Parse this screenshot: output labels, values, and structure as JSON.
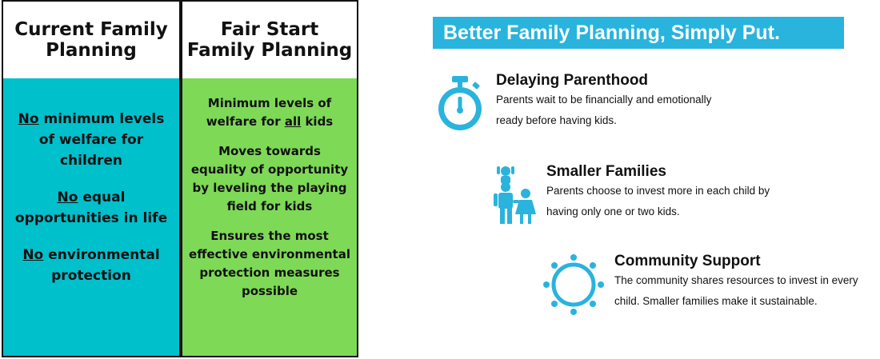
{
  "comparison": {
    "current": {
      "heading": [
        "Current Family",
        "Planning"
      ],
      "items": [
        [
          {
            "u": "No"
          },
          " minimum levels of welfare for children"
        ],
        [
          {
            "u": "No"
          },
          " equal opportunities in life"
        ],
        [
          {
            "u": "No"
          },
          " environmental protection"
        ]
      ]
    },
    "fair_start": {
      "heading": [
        "Fair Start",
        "Family Planning"
      ],
      "items": [
        [
          "Minimum levels of welfare for ",
          {
            "u": "all"
          },
          " kids"
        ],
        [
          "Moves towards equality of opportunity by leveling the playing field for kids"
        ],
        [
          "Ensures the most effective environmental protection measures possible"
        ]
      ]
    }
  },
  "banner": {
    "title": "Better Family Planning, Simply Put."
  },
  "features": [
    {
      "icon": "stopwatch-icon",
      "title": "Delaying Parenthood",
      "desc_lines": [
        "Parents wait to be financially and emotionally",
        "ready before having kids."
      ]
    },
    {
      "icon": "family-icon",
      "title": "Smaller Families",
      "desc_lines": [
        "Parents choose to invest more in each child by",
        "having only one or two kids."
      ]
    },
    {
      "icon": "community-circle-icon",
      "title": "Community Support",
      "desc_lines": [
        "The community shares resources to invest in every",
        "child. Smaller families make it sustainable."
      ]
    }
  ],
  "colors": {
    "teal": "#00c0cc",
    "green": "#7ed957",
    "banner_blue": "#28b4dc",
    "icon_blue": "#2ab3dd"
  }
}
